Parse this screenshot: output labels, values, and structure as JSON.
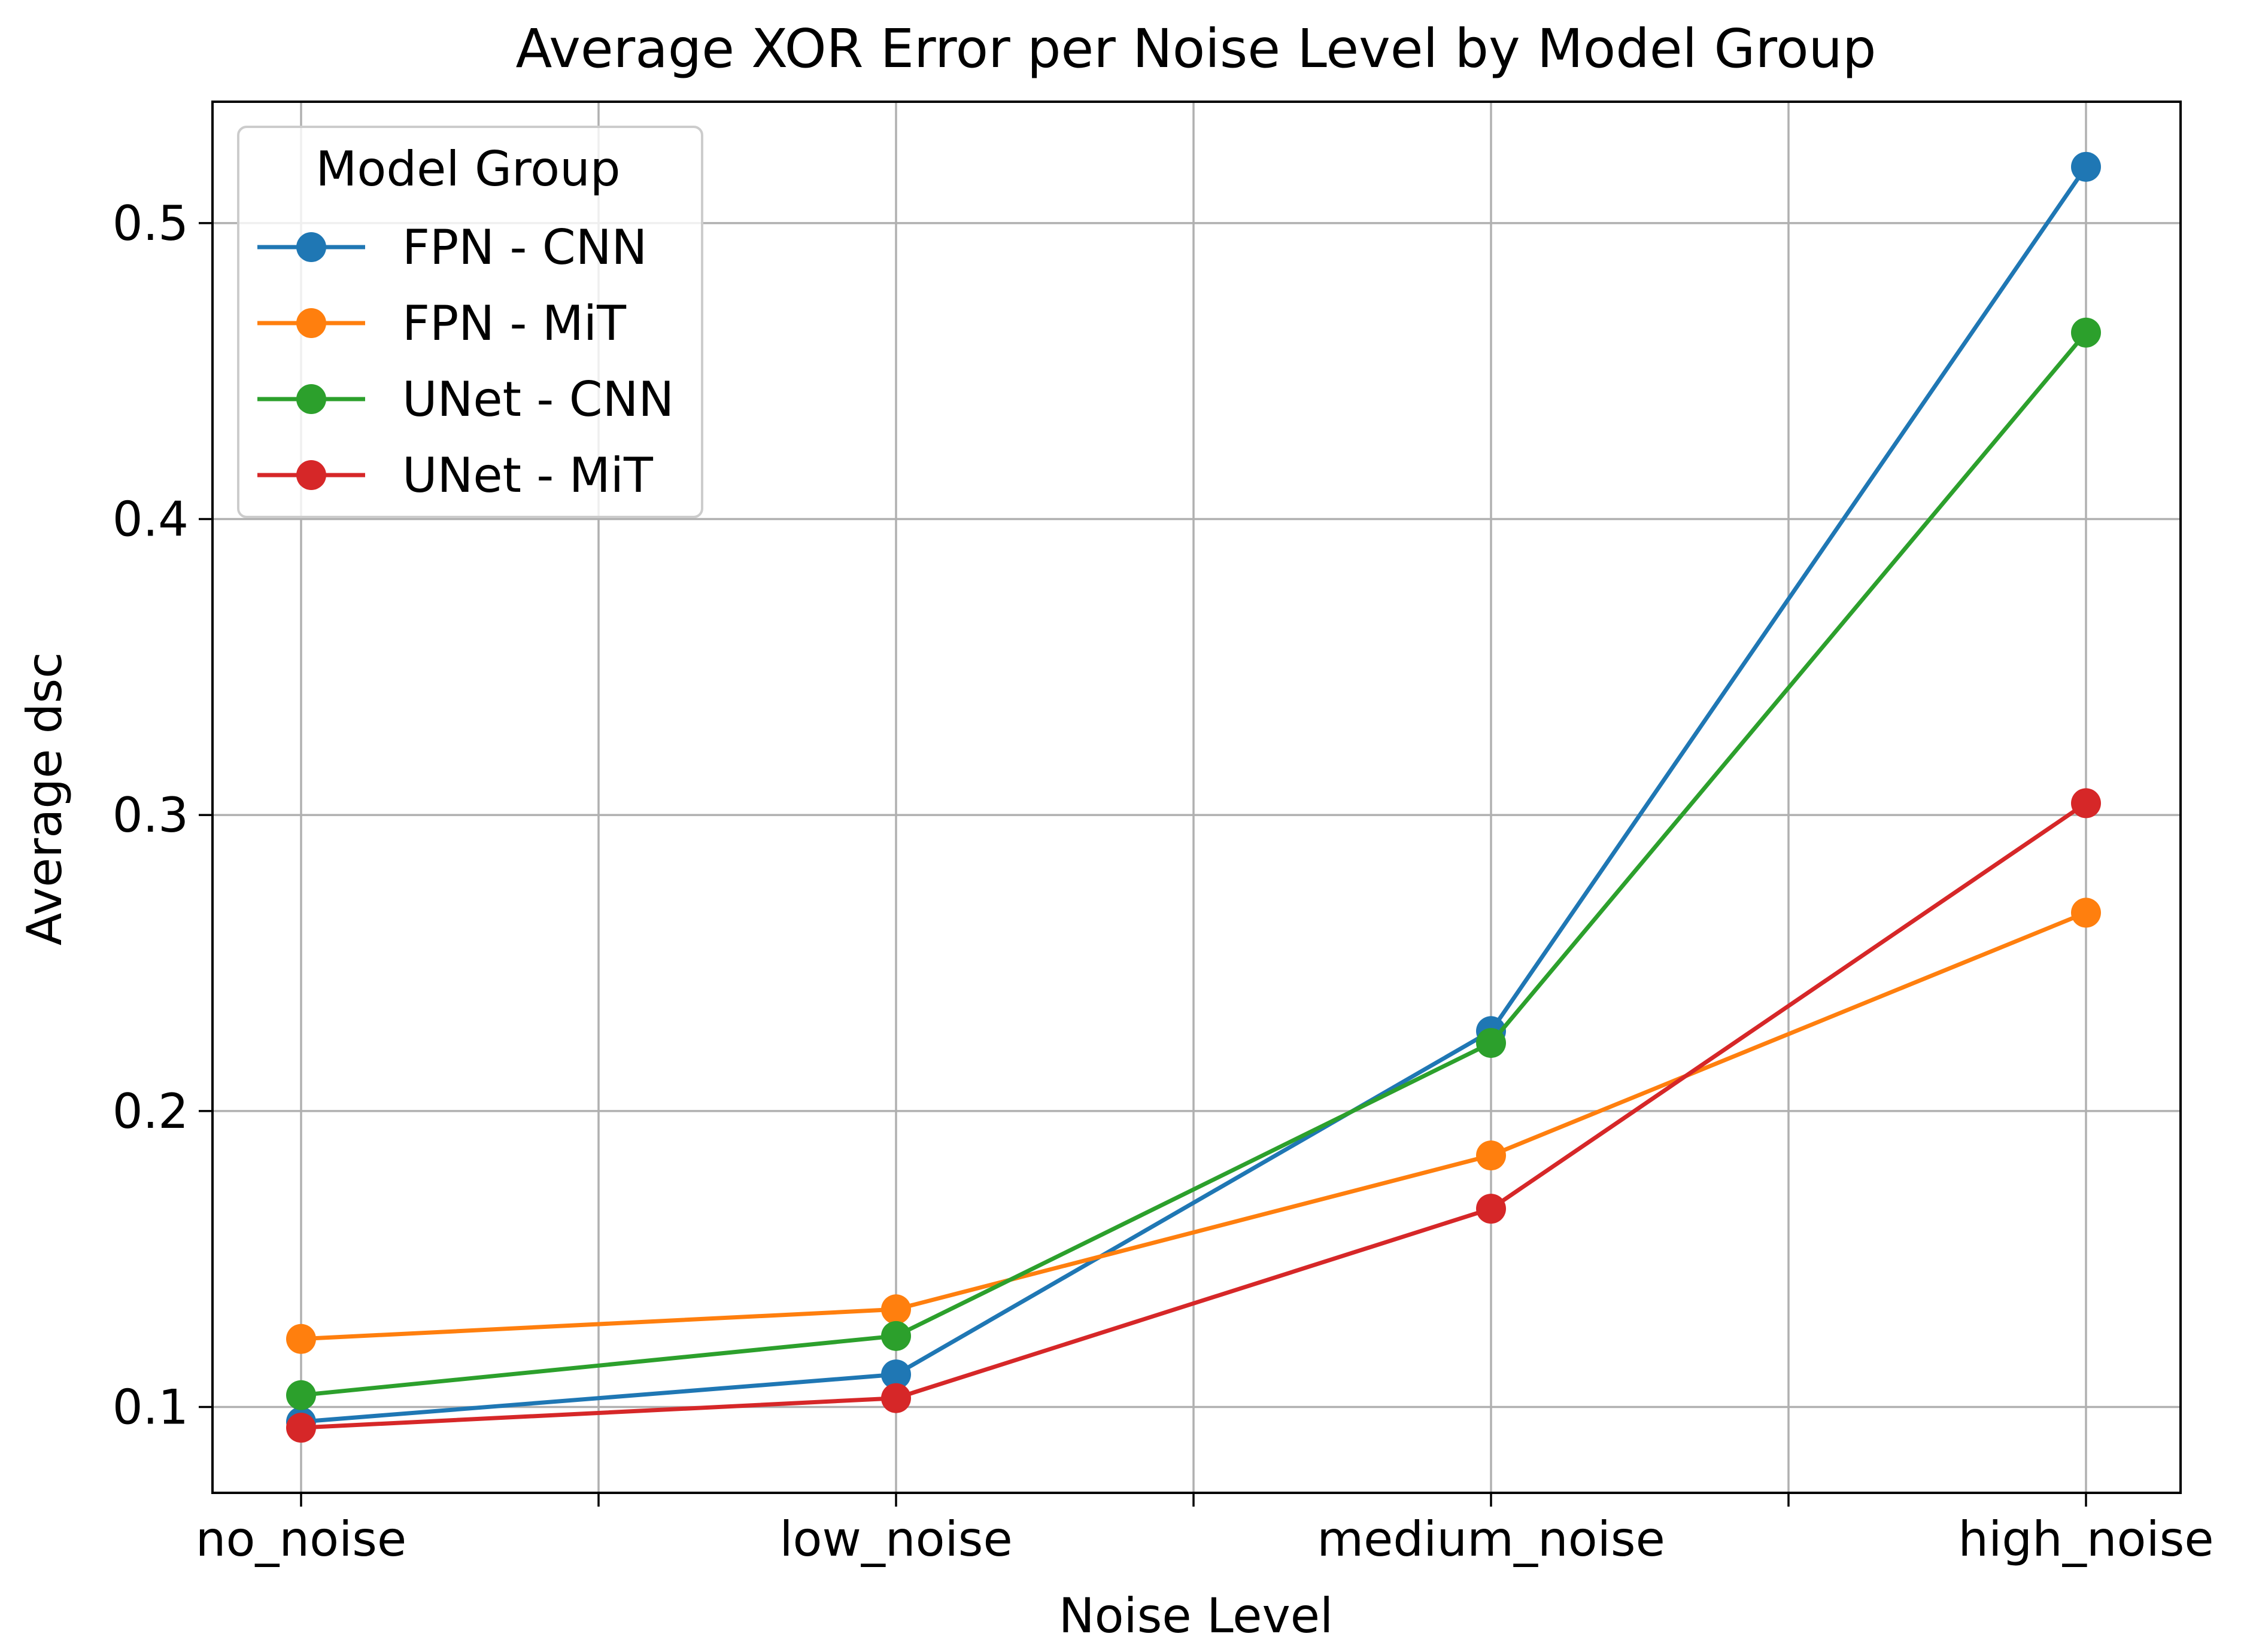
{
  "chart_data": {
    "type": "line",
    "title": "Average XOR Error per Noise Level by Model Group",
    "xlabel": "Noise Level",
    "ylabel": "Average dsc",
    "categories": [
      "no_noise",
      "low_noise",
      "medium_noise",
      "high_noise"
    ],
    "ylim": [
      0.071,
      0.541
    ],
    "yticks": [
      0.1,
      0.2,
      0.3,
      0.4,
      0.5
    ],
    "ytick_labels": [
      "0.1",
      "0.2",
      "0.3",
      "0.4",
      "0.5"
    ],
    "grid": true,
    "legend": {
      "title": "Model Group",
      "position": "top-left"
    },
    "series": [
      {
        "name": "FPN - CNN",
        "color": "#1f77b4",
        "values": [
          0.095,
          0.111,
          0.227,
          0.519
        ]
      },
      {
        "name": "FPN - MiT",
        "color": "#ff7f0e",
        "values": [
          0.123,
          0.133,
          0.185,
          0.267
        ]
      },
      {
        "name": "UNet - CNN",
        "color": "#2ca02c",
        "values": [
          0.104,
          0.124,
          0.223,
          0.463
        ]
      },
      {
        "name": "UNet - MiT",
        "color": "#d62728",
        "values": [
          0.093,
          0.103,
          0.167,
          0.304
        ]
      }
    ]
  }
}
